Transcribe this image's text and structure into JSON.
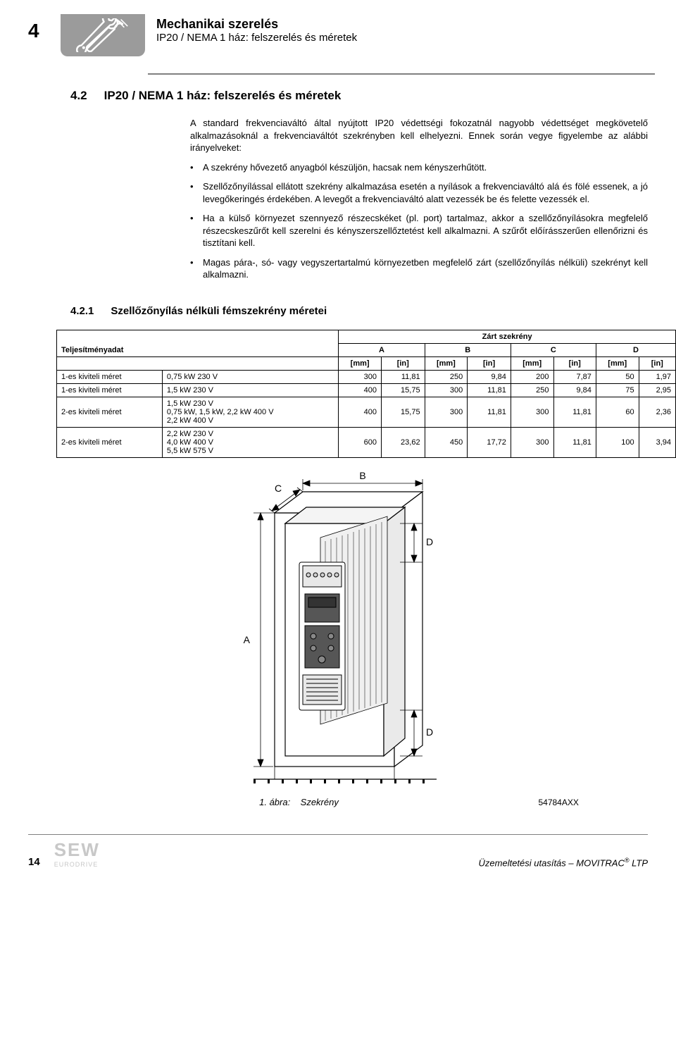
{
  "header": {
    "chapter_num": "4",
    "title": "Mechanikai szerelés",
    "subtitle": "IP20 / NEMA 1 ház: felszerelés és méretek"
  },
  "section": {
    "num": "4.2",
    "title": "IP20 / NEMA 1 ház: felszerelés és méretek"
  },
  "intro": "A standard frekvenciaváltó által nyújtott IP20 védettségi fokozatnál nagyobb védettséget megkövetelő alkalmazásoknál a frekvenciaváltót szekrényben kell elhelyezni. Ennek során vegye figyelembe az alábbi irányelveket:",
  "bullets": [
    "A szekrény hővezető anyagból készüljön, hacsak nem kényszerhűtött.",
    "Szellőzőnyílással ellátott szekrény alkalmazása esetén a nyílások a frekvenciaváltó alá és fölé essenek, a jó levegőkeringés érdekében. A levegőt a frekvenciaváltó alatt vezessék be és felette vezessék el.",
    "Ha a külső környezet szennyező részecskéket (pl. port) tartalmaz, akkor a szellőzőnyílásokra megfelelő részecskeszűrőt kell szerelni és kényszerszellőztetést kell alkalmazni. A szűrőt előírásszerűen ellenőrizni és tisztítani kell.",
    "Magas pára-, só- vagy vegyszertartalmú környezetben megfelelő zárt (szellőzőnyílás nélküli) szekrényt kell alkalmazni."
  ],
  "subsection": {
    "num": "4.2.1",
    "title": "Szellőzőnyílás nélküli fémszekrény méretei"
  },
  "table": {
    "super_header": "Zárt szekrény",
    "row_header": "Teljesítményadat",
    "col_groups": [
      "A",
      "B",
      "C",
      "D"
    ],
    "unit_pair": [
      "[mm]",
      "[in]"
    ],
    "rows": [
      {
        "label": "1-es kiviteli méret",
        "desc": "0,75 kW 230 V",
        "vals": [
          "300",
          "11,81",
          "250",
          "9,84",
          "200",
          "7,87",
          "50",
          "1,97"
        ]
      },
      {
        "label": "1-es kiviteli méret",
        "desc": "1,5 kW 230 V",
        "vals": [
          "400",
          "15,75",
          "300",
          "11,81",
          "250",
          "9,84",
          "75",
          "2,95"
        ]
      },
      {
        "label": "2-es kiviteli méret",
        "desc": "1,5 kW 230 V\n0,75 kW, 1,5 kW, 2,2 kW 400 V\n2,2 kW 400 V",
        "vals": [
          "400",
          "15,75",
          "300",
          "11,81",
          "300",
          "11,81",
          "60",
          "2,36"
        ]
      },
      {
        "label": "2-es kiviteli méret",
        "desc": "2,2 kW 230 V\n4,0 kW 400 V\n5,5 kW 575 V",
        "vals": [
          "600",
          "23,62",
          "450",
          "17,72",
          "300",
          "11,81",
          "100",
          "3,94"
        ]
      }
    ]
  },
  "figure": {
    "labels": {
      "A": "A",
      "B": "B",
      "C": "C",
      "D": "D"
    },
    "caption_prefix": "1. ábra:",
    "caption_text": "Szekrény",
    "id": "54784AXX"
  },
  "footer": {
    "page": "14",
    "logo_main": "SEW",
    "logo_sub": "EURODRIVE",
    "right": "Üzemeltetési utasítás – MOVITRAC",
    "right_sup": "®",
    "right_suffix": " LTP"
  },
  "colors": {
    "icon_bg": "#9b9b9b",
    "rule": "#808080",
    "logo": "#c8c8c8"
  }
}
